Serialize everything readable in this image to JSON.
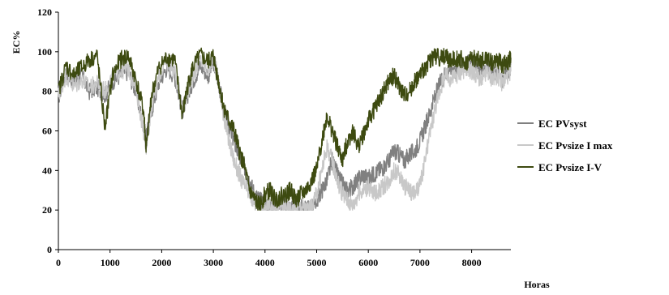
{
  "chart_data": {
    "type": "line",
    "title": "",
    "xlabel": "Horas",
    "ylabel": "EC%",
    "xlim": [
      0,
      8760
    ],
    "ylim": [
      0,
      120
    ],
    "xticks": [
      0,
      1000,
      2000,
      3000,
      4000,
      5000,
      6000,
      7000,
      8000
    ],
    "yticks": [
      0,
      20,
      40,
      60,
      80,
      100,
      120
    ],
    "grid": false,
    "legend_position": "right",
    "series": [
      {
        "name": "EC PVsyst",
        "color": "#808080",
        "x": [
          0,
          150,
          300,
          450,
          600,
          750,
          900,
          1050,
          1200,
          1350,
          1500,
          1650,
          1700,
          1800,
          1950,
          2100,
          2250,
          2400,
          2500,
          2600,
          2750,
          2900,
          3000,
          3100,
          3200,
          3300,
          3400,
          3500,
          3600,
          3700,
          3800,
          3900,
          4000,
          4100,
          4200,
          4300,
          4400,
          4500,
          4600,
          4700,
          4800,
          4900,
          5000,
          5100,
          5200,
          5300,
          5400,
          5500,
          5600,
          5700,
          5800,
          5900,
          6000,
          6100,
          6200,
          6300,
          6400,
          6500,
          6600,
          6700,
          6800,
          6900,
          7000,
          7100,
          7200,
          7300,
          7400,
          7500,
          7600,
          7700,
          7800,
          7900,
          8000,
          8100,
          8200,
          8300,
          8400,
          8500,
          8600,
          8700,
          8760
        ],
        "y": [
          77,
          90,
          84,
          88,
          80,
          82,
          78,
          85,
          88,
          90,
          80,
          62,
          56,
          70,
          85,
          92,
          88,
          70,
          78,
          85,
          93,
          88,
          95,
          85,
          70,
          62,
          55,
          47,
          42,
          35,
          28,
          25,
          24,
          22,
          23,
          24,
          23,
          21,
          22,
          21,
          20,
          22,
          25,
          30,
          35,
          45,
          38,
          33,
          30,
          32,
          35,
          38,
          36,
          38,
          40,
          42,
          45,
          50,
          48,
          45,
          48,
          50,
          55,
          62,
          70,
          78,
          85,
          90,
          92,
          90,
          93,
          94,
          95,
          92,
          90,
          94,
          88,
          90,
          85,
          90,
          92
        ]
      },
      {
        "name": "EC Pvsize I max",
        "color": "#c8c8c8",
        "x": [
          0,
          150,
          300,
          450,
          600,
          750,
          900,
          1050,
          1200,
          1350,
          1500,
          1650,
          1700,
          1800,
          1950,
          2100,
          2250,
          2400,
          2500,
          2600,
          2750,
          2900,
          3000,
          3100,
          3200,
          3300,
          3400,
          3500,
          3600,
          3700,
          3800,
          3900,
          4000,
          4100,
          4200,
          4300,
          4400,
          4500,
          4600,
          4700,
          4800,
          4900,
          5000,
          5100,
          5200,
          5300,
          5400,
          5500,
          5600,
          5700,
          5800,
          5900,
          6000,
          6100,
          6200,
          6300,
          6400,
          6500,
          6600,
          6700,
          6800,
          6900,
          7000,
          7100,
          7200,
          7300,
          7400,
          7500,
          7600,
          7700,
          7800,
          7900,
          8000,
          8100,
          8200,
          8300,
          8400,
          8500,
          8600,
          8700,
          8760
        ],
        "y": [
          78,
          88,
          82,
          86,
          82,
          84,
          80,
          88,
          90,
          92,
          82,
          60,
          52,
          72,
          88,
          95,
          90,
          72,
          80,
          88,
          96,
          90,
          98,
          85,
          68,
          55,
          45,
          38,
          32,
          28,
          24,
          22,
          21,
          22,
          20,
          22,
          21,
          20,
          20,
          22,
          20,
          21,
          28,
          40,
          52,
          45,
          35,
          28,
          25,
          22,
          28,
          30,
          32,
          28,
          30,
          32,
          35,
          40,
          38,
          32,
          30,
          28,
          32,
          45,
          60,
          72,
          82,
          88,
          86,
          88,
          90,
          92,
          90,
          88,
          85,
          90,
          86,
          88,
          84,
          88,
          90
        ]
      },
      {
        "name": "EC Pvsize I-V",
        "color": "#3d4a10",
        "x": [
          0,
          150,
          300,
          450,
          600,
          750,
          900,
          1050,
          1200,
          1350,
          1500,
          1650,
          1700,
          1800,
          1950,
          2100,
          2250,
          2400,
          2500,
          2600,
          2750,
          2900,
          3000,
          3100,
          3200,
          3300,
          3400,
          3500,
          3600,
          3700,
          3800,
          3900,
          4000,
          4100,
          4200,
          4300,
          4400,
          4500,
          4600,
          4700,
          4800,
          4900,
          5000,
          5100,
          5200,
          5300,
          5400,
          5500,
          5600,
          5700,
          5800,
          5900,
          6000,
          6100,
          6200,
          6300,
          6400,
          6500,
          6600,
          6700,
          6800,
          6900,
          7000,
          7100,
          7200,
          7300,
          7400,
          7500,
          7600,
          7700,
          7800,
          7900,
          8000,
          8100,
          8200,
          8300,
          8400,
          8500,
          8600,
          8700,
          8760
        ],
        "y": [
          80,
          93,
          88,
          92,
          96,
          98,
          62,
          88,
          96,
          98,
          86,
          70,
          50,
          78,
          92,
          97,
          96,
          68,
          82,
          92,
          98,
          95,
          98,
          85,
          72,
          65,
          60,
          50,
          42,
          30,
          25,
          22,
          28,
          30,
          25,
          27,
          28,
          30,
          25,
          28,
          30,
          35,
          40,
          55,
          68,
          60,
          52,
          45,
          55,
          60,
          52,
          58,
          65,
          70,
          75,
          80,
          85,
          88,
          82,
          78,
          80,
          85,
          88,
          92,
          96,
          98,
          97,
          98,
          95,
          97,
          96,
          94,
          97,
          96,
          95,
          97,
          94,
          96,
          93,
          95,
          97
        ]
      }
    ]
  }
}
